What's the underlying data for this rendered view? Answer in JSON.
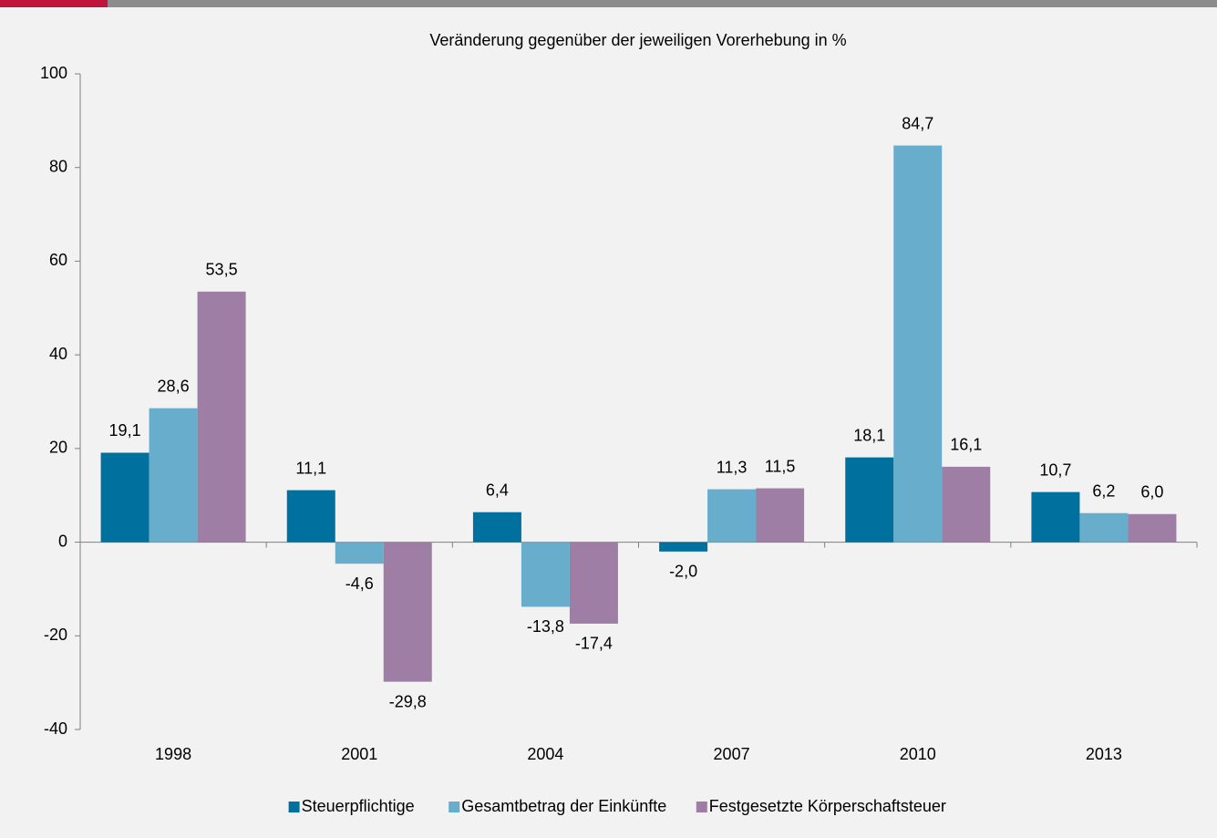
{
  "chart_data": {
    "type": "bar",
    "title": "Veränderung gegenüber der jeweiligen Vorerhebung in %",
    "categories": [
      "1998",
      "2001",
      "2004",
      "2007",
      "2010",
      "2013"
    ],
    "series": [
      {
        "name": "Steuerpflichtige",
        "color": "#00709f",
        "values": [
          19.1,
          11.1,
          6.4,
          -2.0,
          18.1,
          10.7
        ],
        "value_labels": [
          "19,1",
          "11,1",
          "6,4",
          "-2,0",
          "18,1",
          "10,7"
        ]
      },
      {
        "name": "Gesamtbetrag der Einkünfte",
        "color": "#68adcb",
        "values": [
          28.6,
          -4.6,
          -13.8,
          11.3,
          84.7,
          6.2
        ],
        "value_labels": [
          "28,6",
          "-4,6",
          "-13,8",
          "11,3",
          "84,7",
          "6,2"
        ]
      },
      {
        "name": "Festgesetzte Körperschaftsteuer",
        "color": "#9e7ea4",
        "values": [
          53.5,
          -29.8,
          -17.4,
          11.5,
          16.1,
          6.0
        ],
        "value_labels": [
          "53,5",
          "-29,8",
          "-17,4",
          "11,5",
          "16,1",
          "6,0"
        ]
      }
    ],
    "ylim": [
      -40,
      100
    ],
    "yticks": [
      -40,
      -20,
      0,
      20,
      40,
      60,
      80,
      100
    ],
    "grid": false,
    "legend": "bottom"
  }
}
